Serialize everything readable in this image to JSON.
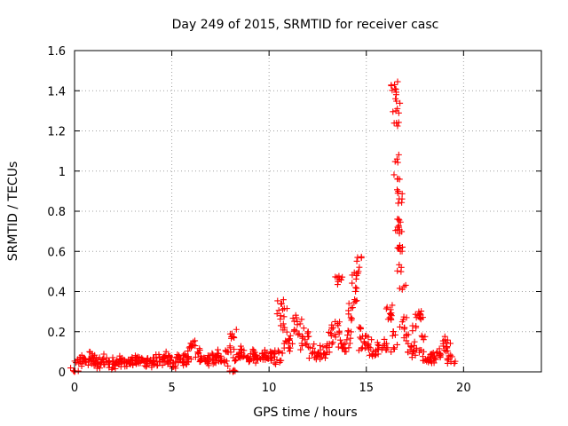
{
  "chart_data": {
    "type": "scatter",
    "title": "Day 249 of 2015, SRMTID for receiver casc",
    "xlabel": "GPS time / hours",
    "ylabel": "SRMTID / TECUs",
    "xlim": [
      0,
      24
    ],
    "ylim": [
      0,
      1.6
    ],
    "x_ticks": [
      0,
      5,
      10,
      15,
      20
    ],
    "y_ticks": [
      0,
      0.2,
      0.4,
      0.6,
      0.8,
      1,
      1.2,
      1.4,
      1.6
    ],
    "x_tick_labels": [
      "0",
      "5",
      "10",
      "15",
      "20"
    ],
    "y_tick_labels": [
      "0",
      "0.2",
      "0.4",
      "0.6",
      "0.8",
      "1",
      "1.2",
      "1.4",
      "1.6"
    ],
    "grid": true,
    "marker": "plus",
    "color": "#ff0000",
    "series": [
      {
        "points": [
          [
            0.0,
            0.0
          ],
          [
            0.15,
            0.06
          ],
          [
            0.3,
            0.05
          ],
          [
            0.45,
            0.07
          ],
          [
            0.6,
            0.05
          ],
          [
            0.75,
            0.06
          ],
          [
            0.9,
            0.08
          ],
          [
            1.05,
            0.05
          ],
          [
            1.2,
            0.06
          ],
          [
            1.35,
            0.04
          ],
          [
            1.5,
            0.05
          ],
          [
            1.65,
            0.07
          ],
          [
            1.8,
            0.04
          ],
          [
            1.95,
            0.05
          ],
          [
            2.1,
            0.03
          ],
          [
            2.25,
            0.05
          ],
          [
            2.4,
            0.04
          ],
          [
            2.55,
            0.06
          ],
          [
            2.7,
            0.05
          ],
          [
            2.85,
            0.04
          ],
          [
            3.0,
            0.06
          ],
          [
            3.15,
            0.07
          ],
          [
            3.3,
            0.05
          ],
          [
            3.45,
            0.06
          ],
          [
            3.6,
            0.05
          ],
          [
            3.75,
            0.04
          ],
          [
            3.9,
            0.06
          ],
          [
            4.05,
            0.05
          ],
          [
            4.2,
            0.07
          ],
          [
            4.35,
            0.05
          ],
          [
            4.5,
            0.06
          ],
          [
            4.65,
            0.08
          ],
          [
            4.8,
            0.05
          ],
          [
            4.95,
            0.06
          ],
          [
            5.1,
            0.04
          ],
          [
            5.25,
            0.07
          ],
          [
            5.4,
            0.06
          ],
          [
            5.55,
            0.05
          ],
          [
            5.7,
            0.08
          ],
          [
            5.85,
            0.07
          ],
          [
            6.0,
            0.12
          ],
          [
            6.1,
            0.15
          ],
          [
            6.2,
            0.13
          ],
          [
            6.35,
            0.09
          ],
          [
            6.5,
            0.06
          ],
          [
            6.65,
            0.07
          ],
          [
            6.8,
            0.05
          ],
          [
            6.95,
            0.08
          ],
          [
            7.1,
            0.06
          ],
          [
            7.25,
            0.07
          ],
          [
            7.4,
            0.09
          ],
          [
            7.55,
            0.06
          ],
          [
            7.7,
            0.05
          ],
          [
            7.85,
            0.1
          ],
          [
            8.0,
            0.12
          ],
          [
            8.1,
            0.19
          ],
          [
            8.2,
            0.17
          ],
          [
            8.15,
            0.0
          ],
          [
            8.3,
            0.06
          ],
          [
            8.45,
            0.09
          ],
          [
            8.6,
            0.11
          ],
          [
            8.75,
            0.08
          ],
          [
            8.9,
            0.07
          ],
          [
            9.05,
            0.09
          ],
          [
            9.2,
            0.06
          ],
          [
            9.35,
            0.08
          ],
          [
            9.5,
            0.07
          ],
          [
            9.65,
            0.09
          ],
          [
            9.8,
            0.06
          ],
          [
            9.95,
            0.08
          ],
          [
            10.1,
            0.07
          ],
          [
            10.25,
            0.09
          ],
          [
            10.4,
            0.06
          ],
          [
            10.5,
            0.1
          ],
          [
            10.6,
            0.28
          ],
          [
            10.65,
            0.34
          ],
          [
            10.7,
            0.31
          ],
          [
            10.8,
            0.22
          ],
          [
            10.9,
            0.15
          ],
          [
            11.0,
            0.12
          ],
          [
            11.1,
            0.18
          ],
          [
            11.2,
            0.14
          ],
          [
            11.3,
            0.21
          ],
          [
            11.4,
            0.27
          ],
          [
            11.45,
            0.25
          ],
          [
            11.55,
            0.19
          ],
          [
            11.7,
            0.13
          ],
          [
            11.85,
            0.16
          ],
          [
            12.0,
            0.2
          ],
          [
            12.1,
            0.12
          ],
          [
            12.2,
            0.09
          ],
          [
            12.35,
            0.1
          ],
          [
            12.5,
            0.08
          ],
          [
            12.65,
            0.11
          ],
          [
            12.8,
            0.09
          ],
          [
            12.95,
            0.12
          ],
          [
            13.1,
            0.14
          ],
          [
            13.2,
            0.18
          ],
          [
            13.3,
            0.22
          ],
          [
            13.4,
            0.25
          ],
          [
            13.5,
            0.47
          ],
          [
            13.55,
            0.45
          ],
          [
            13.6,
            0.19
          ],
          [
            13.7,
            0.14
          ],
          [
            13.8,
            0.12
          ],
          [
            13.9,
            0.1
          ],
          [
            14.0,
            0.16
          ],
          [
            14.1,
            0.2
          ],
          [
            14.2,
            0.27
          ],
          [
            14.3,
            0.32
          ],
          [
            14.4,
            0.36
          ],
          [
            14.45,
            0.42
          ],
          [
            14.5,
            0.48
          ],
          [
            14.55,
            0.57
          ],
          [
            14.6,
            0.5
          ],
          [
            14.7,
            0.22
          ],
          [
            14.8,
            0.12
          ],
          [
            14.9,
            0.15
          ],
          [
            15.0,
            0.18
          ],
          [
            15.1,
            0.14
          ],
          [
            15.2,
            0.12
          ],
          [
            15.35,
            0.09
          ],
          [
            15.5,
            0.1
          ],
          [
            15.65,
            0.13
          ],
          [
            15.8,
            0.11
          ],
          [
            15.95,
            0.14
          ],
          [
            16.1,
            0.12
          ],
          [
            16.2,
            0.27
          ],
          [
            16.25,
            0.31
          ],
          [
            16.3,
            0.28
          ],
          [
            16.35,
            0.18
          ],
          [
            16.4,
            0.12
          ],
          [
            16.45,
            1.43
          ],
          [
            16.48,
            1.41
          ],
          [
            16.5,
            1.36
          ],
          [
            16.52,
            1.3
          ],
          [
            16.55,
            1.24
          ],
          [
            16.58,
            1.06
          ],
          [
            16.6,
            0.96
          ],
          [
            16.62,
            0.89
          ],
          [
            16.64,
            0.84
          ],
          [
            16.66,
            0.76
          ],
          [
            16.68,
            0.72
          ],
          [
            16.7,
            0.69
          ],
          [
            16.72,
            0.63
          ],
          [
            16.75,
            0.6
          ],
          [
            16.8,
            0.52
          ],
          [
            16.85,
            0.41
          ],
          [
            16.9,
            0.26
          ],
          [
            16.95,
            0.22
          ],
          [
            17.05,
            0.18
          ],
          [
            17.15,
            0.14
          ],
          [
            17.25,
            0.11
          ],
          [
            17.35,
            0.09
          ],
          [
            17.45,
            0.13
          ],
          [
            17.55,
            0.22
          ],
          [
            17.65,
            0.28
          ],
          [
            17.7,
            0.3
          ],
          [
            17.75,
            0.27
          ],
          [
            17.85,
            0.18
          ],
          [
            17.95,
            0.1
          ],
          [
            18.05,
            0.06
          ],
          [
            18.2,
            0.07
          ],
          [
            18.35,
            0.05
          ],
          [
            18.5,
            0.08
          ],
          [
            18.65,
            0.1
          ],
          [
            18.8,
            0.09
          ],
          [
            18.95,
            0.14
          ],
          [
            19.05,
            0.16
          ],
          [
            19.15,
            0.12
          ],
          [
            19.25,
            0.08
          ],
          [
            19.35,
            0.05
          ]
        ]
      }
    ]
  }
}
